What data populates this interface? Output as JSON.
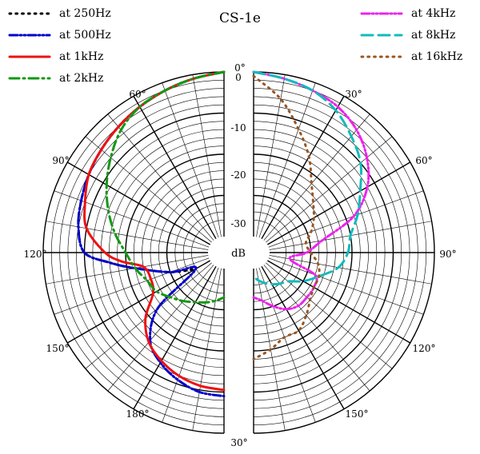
{
  "chart_data": {
    "type": "polar",
    "title": "CS-1e",
    "r_axis_label": "dB",
    "r_range": [
      -40,
      0
    ],
    "r_ticks": [
      "0",
      "-10",
      "-20",
      "-30"
    ],
    "angle_ticks": [
      "0°",
      "30°",
      "60°",
      "90°",
      "120°",
      "150°",
      "180°",
      "30°",
      "60°",
      "90°",
      "120°",
      "150°"
    ],
    "legend_placement": "top-left and top-right",
    "series": [
      {
        "name": "at 250Hz",
        "color": "#000000",
        "dash": "dotted",
        "side": "left",
        "theta": [
          0,
          10,
          20,
          30,
          40,
          50,
          60,
          70,
          80,
          90,
          95,
          100,
          110,
          120
        ],
        "db": [
          0,
          -1,
          -2,
          -3,
          -4,
          -5,
          -6,
          -7,
          -8,
          -10,
          -16,
          -22,
          -30,
          -36
        ]
      },
      {
        "name": "at 500Hz",
        "color": "#0000cc",
        "dash": "dash-dot-dot",
        "side": "left",
        "theta": [
          0,
          10,
          20,
          30,
          40,
          50,
          60,
          70,
          80,
          90,
          95,
          100,
          110,
          120,
          130,
          140,
          150,
          160,
          170,
          180
        ],
        "db": [
          0,
          -1,
          -2,
          -3,
          -4,
          -5,
          -6,
          -7,
          -8,
          -10,
          -16,
          -22,
          -30,
          -36,
          -23,
          -16,
          -13,
          -11,
          -9.5,
          -9
        ]
      },
      {
        "name": "at 1kHz",
        "color": "#ee1111",
        "dash": "solid",
        "side": "left",
        "theta": [
          0,
          10,
          20,
          30,
          40,
          50,
          60,
          70,
          80,
          90,
          95,
          100,
          110,
          120,
          130,
          140,
          150,
          160,
          170,
          180
        ],
        "db": [
          0,
          -1,
          -2,
          -3,
          -4,
          -5,
          -6,
          -8,
          -10,
          -15,
          -19,
          -24,
          -25,
          -24,
          -19,
          -15.5,
          -13.5,
          -12,
          -11,
          -10.5
        ]
      },
      {
        "name": "at 2kHz",
        "color": "#119911",
        "dash": "dash-dot",
        "side": "left",
        "theta": [
          0,
          10,
          20,
          30,
          40,
          50,
          60,
          70,
          80,
          90,
          100,
          110,
          120,
          130,
          140,
          150,
          160,
          170,
          180
        ],
        "db": [
          0,
          -1,
          -2,
          -3,
          -5,
          -8,
          -11,
          -14,
          -17,
          -20,
          -22,
          -24,
          -25,
          -27,
          -28.5,
          -30,
          -31,
          -32,
          -33
        ]
      },
      {
        "name": "at 4kHz",
        "color": "#ee22ee",
        "dash": "dash-dot-dot",
        "side": "right",
        "theta": [
          0,
          10,
          20,
          30,
          40,
          50,
          60,
          70,
          80,
          90,
          100,
          110,
          120,
          130,
          140,
          150,
          160,
          170,
          180
        ],
        "db": [
          0,
          -1,
          -2,
          -3,
          -5,
          -8,
          -12,
          -18,
          -27,
          -31,
          -35,
          -28,
          -27,
          -27,
          -27,
          -28,
          -30,
          -32,
          -33
        ]
      },
      {
        "name": "at 8kHz",
        "color": "#11bbbb",
        "dash": "dashed",
        "side": "right",
        "theta": [
          0,
          10,
          20,
          30,
          40,
          50,
          60,
          70,
          80,
          90,
          100,
          110,
          120,
          130,
          140,
          150,
          160,
          170,
          180
        ],
        "db": [
          0,
          -1,
          -2,
          -4,
          -7,
          -10,
          -14,
          -17,
          -20,
          -21,
          -23,
          -27,
          -30,
          -33,
          -34,
          -35,
          -36,
          -37,
          -38
        ]
      },
      {
        "name": "at 16kHz",
        "color": "#995522",
        "dash": "dotted",
        "side": "right",
        "theta": [
          0,
          10,
          20,
          30,
          40,
          50,
          60,
          70,
          80,
          90,
          100,
          110,
          120,
          130,
          140,
          150,
          160,
          170,
          180
        ],
        "db": [
          -1,
          -6,
          -12,
          -17,
          -22,
          -25,
          -27,
          -29,
          -31,
          -30,
          -28,
          -27,
          -27,
          -26,
          -24,
          -22,
          -22,
          -20,
          -18
        ]
      }
    ]
  }
}
